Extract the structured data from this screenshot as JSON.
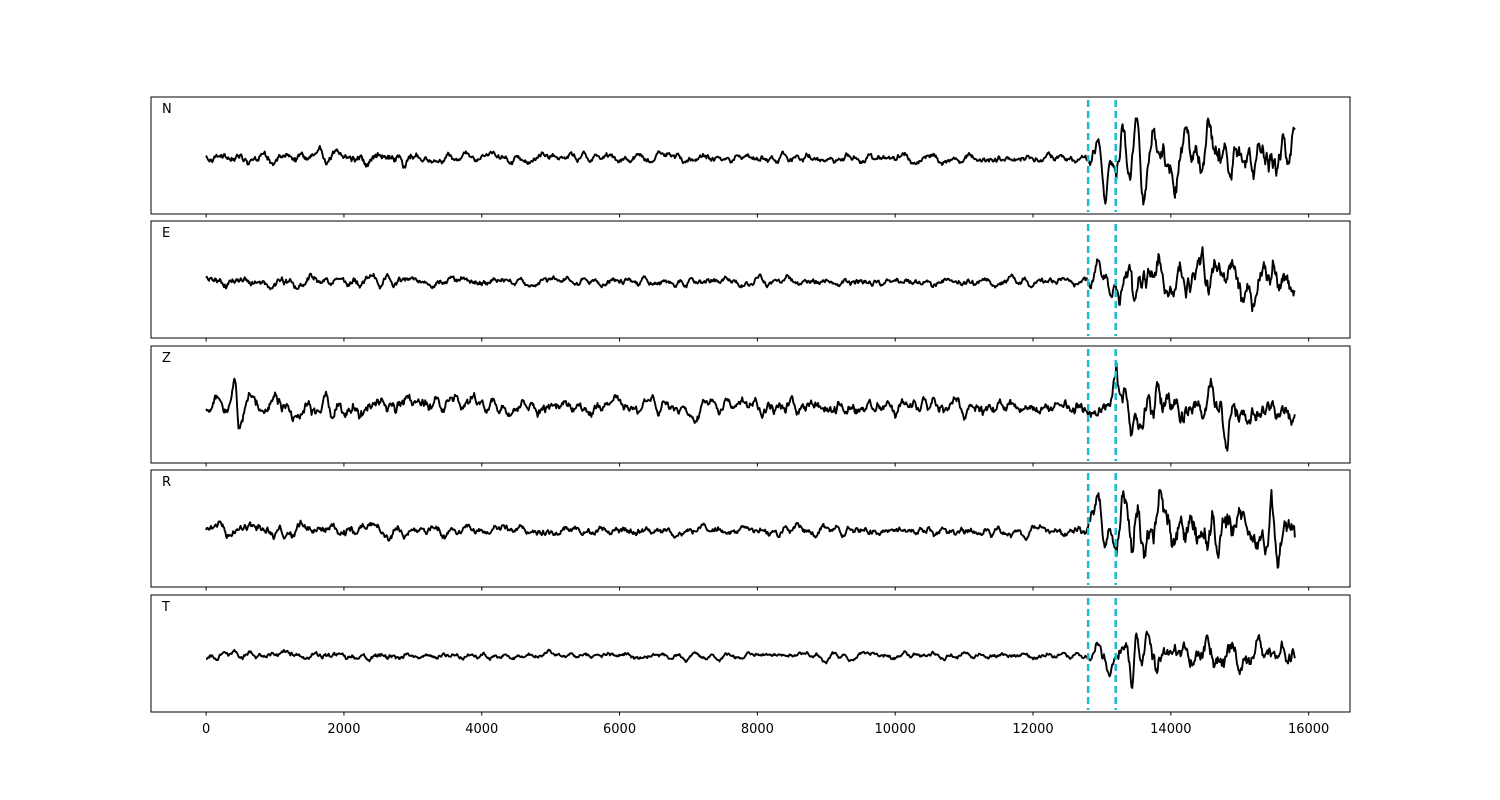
{
  "chart_data": {
    "type": "line",
    "title": "",
    "xlabel": "",
    "ylabel": "",
    "xlim": [
      -800,
      16600
    ],
    "x_ticks": [
      0,
      2000,
      4000,
      6000,
      8000,
      10000,
      12000,
      14000,
      16000
    ],
    "x_tick_labels": [
      "0",
      "2000",
      "4000",
      "6000",
      "8000",
      "10000",
      "12000",
      "14000",
      "16000"
    ],
    "x_range": [
      0,
      15800
    ],
    "grid": false,
    "legend": "none",
    "trace_color": "#000000",
    "pick_color": "#17becf",
    "pick_lines": [
      12800,
      13200
    ],
    "panels": [
      {
        "name": "N",
        "label": "N",
        "noise_amp": 0.17,
        "event_events": [
          {
            "x": 12950,
            "amp": 0.6
          },
          {
            "x": 13050,
            "amp": -0.75
          },
          {
            "x": 13300,
            "amp": 0.55
          },
          {
            "x": 13400,
            "amp": -0.65
          },
          {
            "x": 13500,
            "amp": 0.92
          },
          {
            "x": 13590,
            "amp": -0.85
          },
          {
            "x": 13750,
            "amp": 0.75
          },
          {
            "x": 14050,
            "amp": -0.55
          },
          {
            "x": 14250,
            "amp": 0.52
          },
          {
            "x": 14550,
            "amp": 0.48
          },
          {
            "x": 14850,
            "amp": -0.4
          },
          {
            "x": 15150,
            "amp": 0.4
          },
          {
            "x": 15650,
            "amp": 0.5
          }
        ],
        "event_scale": 0.42
      },
      {
        "name": "E",
        "label": "E",
        "noise_amp": 0.14,
        "event_events": [
          {
            "x": 12950,
            "amp": 0.55
          },
          {
            "x": 13130,
            "amp": -0.4
          },
          {
            "x": 13420,
            "amp": 0.95
          },
          {
            "x": 13470,
            "amp": -0.85
          },
          {
            "x": 13820,
            "amp": 0.35
          },
          {
            "x": 14050,
            "amp": -0.3
          },
          {
            "x": 14450,
            "amp": 0.3
          },
          {
            "x": 15050,
            "amp": -0.25
          },
          {
            "x": 15500,
            "amp": 0.3
          }
        ],
        "event_scale": 0.3
      },
      {
        "name": "Z",
        "label": "Z",
        "noise_amp": 0.3,
        "event_events": [
          {
            "x": 420,
            "amp": 0.95
          },
          {
            "x": 470,
            "amp": -0.72
          },
          {
            "x": 13200,
            "amp": 0.5
          },
          {
            "x": 13420,
            "amp": -0.75
          },
          {
            "x": 13800,
            "amp": 0.65
          },
          {
            "x": 14800,
            "amp": -0.85
          },
          {
            "x": 14600,
            "amp": 0.45
          },
          {
            "x": 15550,
            "amp": -0.55
          }
        ],
        "event_scale": 0.35
      },
      {
        "name": "R",
        "label": "R",
        "noise_amp": 0.17,
        "event_events": [
          {
            "x": 12950,
            "amp": 0.55
          },
          {
            "x": 13050,
            "amp": -0.6
          },
          {
            "x": 13310,
            "amp": 0.45
          },
          {
            "x": 13440,
            "amp": -0.75
          },
          {
            "x": 13510,
            "amp": 0.92
          },
          {
            "x": 13850,
            "amp": 0.5
          },
          {
            "x": 14250,
            "amp": 0.62
          },
          {
            "x": 14550,
            "amp": -0.5
          },
          {
            "x": 15050,
            "amp": 0.4
          },
          {
            "x": 15450,
            "amp": 0.42
          }
        ],
        "event_scale": 0.45
      },
      {
        "name": "T",
        "label": "T",
        "noise_amp": 0.14,
        "event_events": [
          {
            "x": 12950,
            "amp": 0.38
          },
          {
            "x": 13100,
            "amp": -0.4
          },
          {
            "x": 13440,
            "amp": -0.9
          },
          {
            "x": 13490,
            "amp": 0.95
          },
          {
            "x": 13650,
            "amp": 0.5
          },
          {
            "x": 13800,
            "amp": -0.55
          },
          {
            "x": 14000,
            "amp": 0.35
          },
          {
            "x": 15600,
            "amp": 0.3
          }
        ],
        "event_scale": 0.35
      }
    ]
  }
}
